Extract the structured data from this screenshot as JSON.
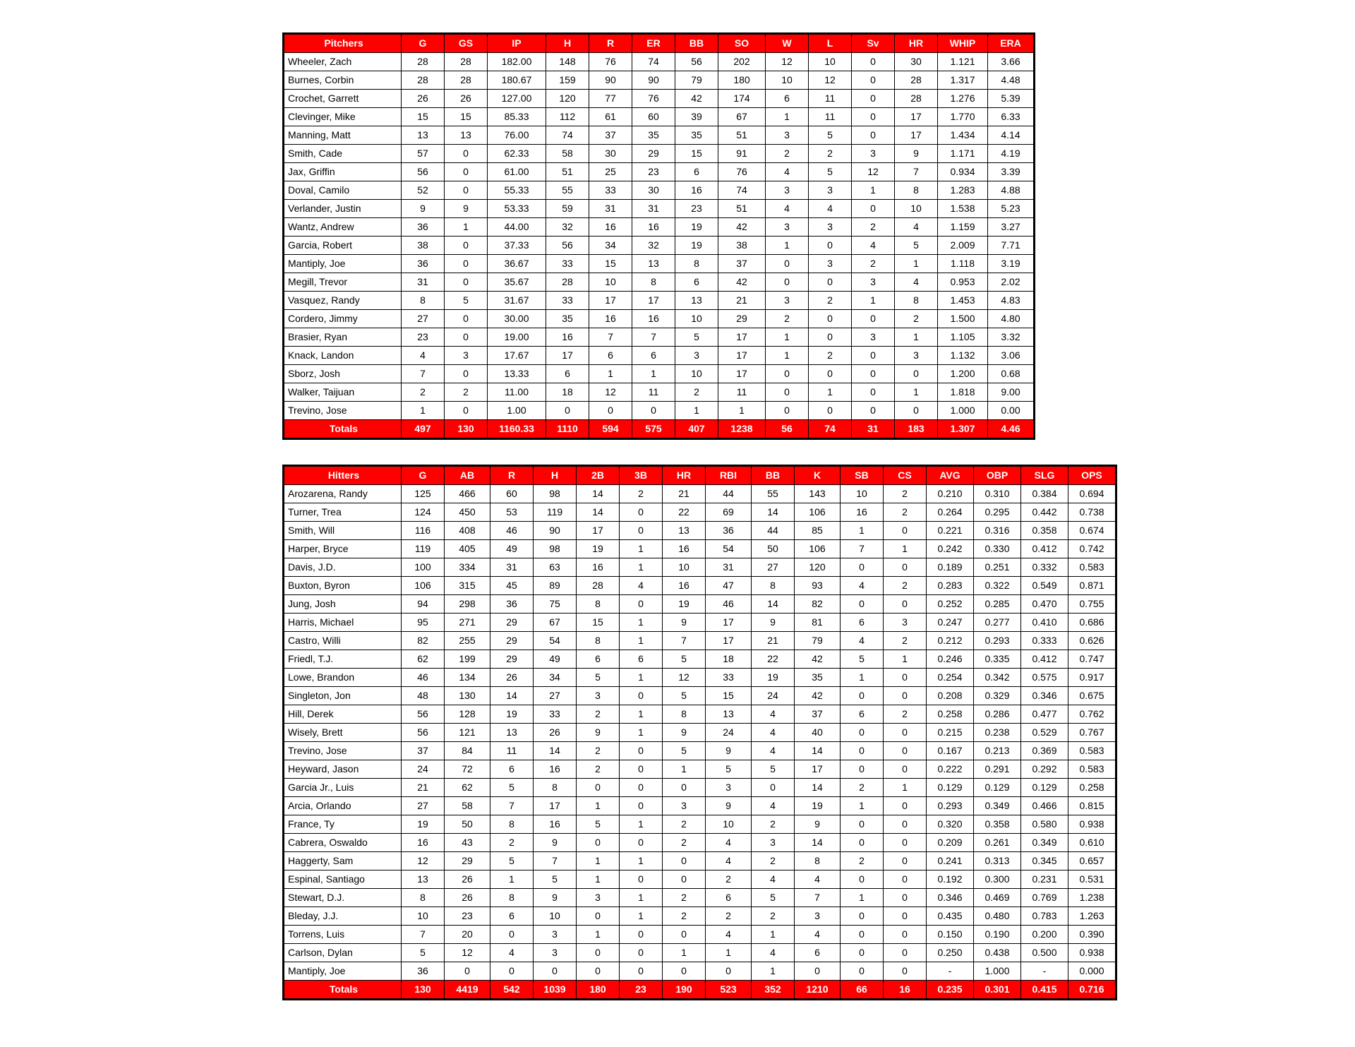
{
  "accent_color": "#FF0000",
  "tables": [
    {
      "id": "pitchers",
      "name_header": "Pitchers",
      "columns": [
        "G",
        "GS",
        "IP",
        "H",
        "R",
        "ER",
        "BB",
        "SO",
        "W",
        "L",
        "Sv",
        "HR",
        "WHIP",
        "ERA"
      ],
      "rows": [
        {
          "name": "Wheeler, Zach",
          "values": [
            "28",
            "28",
            "182.00",
            "148",
            "76",
            "74",
            "56",
            "202",
            "12",
            "10",
            "0",
            "30",
            "1.121",
            "3.66"
          ]
        },
        {
          "name": "Burnes, Corbin",
          "values": [
            "28",
            "28",
            "180.67",
            "159",
            "90",
            "90",
            "79",
            "180",
            "10",
            "12",
            "0",
            "28",
            "1.317",
            "4.48"
          ]
        },
        {
          "name": "Crochet, Garrett",
          "values": [
            "26",
            "26",
            "127.00",
            "120",
            "77",
            "76",
            "42",
            "174",
            "6",
            "11",
            "0",
            "28",
            "1.276",
            "5.39"
          ]
        },
        {
          "name": "Clevinger, Mike",
          "values": [
            "15",
            "15",
            "85.33",
            "112",
            "61",
            "60",
            "39",
            "67",
            "1",
            "11",
            "0",
            "17",
            "1.770",
            "6.33"
          ]
        },
        {
          "name": "Manning, Matt",
          "values": [
            "13",
            "13",
            "76.00",
            "74",
            "37",
            "35",
            "35",
            "51",
            "3",
            "5",
            "0",
            "17",
            "1.434",
            "4.14"
          ]
        },
        {
          "name": "Smith, Cade",
          "values": [
            "57",
            "0",
            "62.33",
            "58",
            "30",
            "29",
            "15",
            "91",
            "2",
            "2",
            "3",
            "9",
            "1.171",
            "4.19"
          ]
        },
        {
          "name": "Jax, Griffin",
          "values": [
            "56",
            "0",
            "61.00",
            "51",
            "25",
            "23",
            "6",
            "76",
            "4",
            "5",
            "12",
            "7",
            "0.934",
            "3.39"
          ]
        },
        {
          "name": "Doval, Camilo",
          "values": [
            "52",
            "0",
            "55.33",
            "55",
            "33",
            "30",
            "16",
            "74",
            "3",
            "3",
            "1",
            "8",
            "1.283",
            "4.88"
          ]
        },
        {
          "name": "Verlander, Justin",
          "values": [
            "9",
            "9",
            "53.33",
            "59",
            "31",
            "31",
            "23",
            "51",
            "4",
            "4",
            "0",
            "10",
            "1.538",
            "5.23"
          ]
        },
        {
          "name": "Wantz, Andrew",
          "values": [
            "36",
            "1",
            "44.00",
            "32",
            "16",
            "16",
            "19",
            "42",
            "3",
            "3",
            "2",
            "4",
            "1.159",
            "3.27"
          ]
        },
        {
          "name": "Garcia, Robert",
          "values": [
            "38",
            "0",
            "37.33",
            "56",
            "34",
            "32",
            "19",
            "38",
            "1",
            "0",
            "4",
            "5",
            "2.009",
            "7.71"
          ]
        },
        {
          "name": "Mantiply, Joe",
          "values": [
            "36",
            "0",
            "36.67",
            "33",
            "15",
            "13",
            "8",
            "37",
            "0",
            "3",
            "2",
            "1",
            "1.118",
            "3.19"
          ]
        },
        {
          "name": "Megill, Trevor",
          "values": [
            "31",
            "0",
            "35.67",
            "28",
            "10",
            "8",
            "6",
            "42",
            "0",
            "0",
            "3",
            "4",
            "0.953",
            "2.02"
          ]
        },
        {
          "name": "Vasquez, Randy",
          "values": [
            "8",
            "5",
            "31.67",
            "33",
            "17",
            "17",
            "13",
            "21",
            "3",
            "2",
            "1",
            "8",
            "1.453",
            "4.83"
          ]
        },
        {
          "name": "Cordero, Jimmy",
          "values": [
            "27",
            "0",
            "30.00",
            "35",
            "16",
            "16",
            "10",
            "29",
            "2",
            "0",
            "0",
            "2",
            "1.500",
            "4.80"
          ]
        },
        {
          "name": "Brasier, Ryan",
          "values": [
            "23",
            "0",
            "19.00",
            "16",
            "7",
            "7",
            "5",
            "17",
            "1",
            "0",
            "3",
            "1",
            "1.105",
            "3.32"
          ]
        },
        {
          "name": "Knack, Landon",
          "values": [
            "4",
            "3",
            "17.67",
            "17",
            "6",
            "6",
            "3",
            "17",
            "1",
            "2",
            "0",
            "3",
            "1.132",
            "3.06"
          ]
        },
        {
          "name": "Sborz, Josh",
          "values": [
            "7",
            "0",
            "13.33",
            "6",
            "1",
            "1",
            "10",
            "17",
            "0",
            "0",
            "0",
            "0",
            "1.200",
            "0.68"
          ]
        },
        {
          "name": "Walker, Taijuan",
          "values": [
            "2",
            "2",
            "11.00",
            "18",
            "12",
            "11",
            "2",
            "11",
            "0",
            "1",
            "0",
            "1",
            "1.818",
            "9.00"
          ]
        },
        {
          "name": "Trevino, Jose",
          "values": [
            "1",
            "0",
            "1.00",
            "0",
            "0",
            "0",
            "1",
            "1",
            "0",
            "0",
            "0",
            "0",
            "1.000",
            "0.00"
          ]
        }
      ],
      "totals_label": "Totals",
      "totals": [
        "497",
        "130",
        "1160.33",
        "1110",
        "594",
        "575",
        "407",
        "1238",
        "56",
        "74",
        "31",
        "183",
        "1.307",
        "4.46"
      ]
    },
    {
      "id": "hitters",
      "name_header": "Hitters",
      "columns": [
        "G",
        "AB",
        "R",
        "H",
        "2B",
        "3B",
        "HR",
        "RBI",
        "BB",
        "K",
        "SB",
        "CS",
        "AVG",
        "OBP",
        "SLG",
        "OPS"
      ],
      "rows": [
        {
          "name": "Arozarena, Randy",
          "values": [
            "125",
            "466",
            "60",
            "98",
            "14",
            "2",
            "21",
            "44",
            "55",
            "143",
            "10",
            "2",
            "0.210",
            "0.310",
            "0.384",
            "0.694"
          ]
        },
        {
          "name": "Turner, Trea",
          "values": [
            "124",
            "450",
            "53",
            "119",
            "14",
            "0",
            "22",
            "69",
            "14",
            "106",
            "16",
            "2",
            "0.264",
            "0.295",
            "0.442",
            "0.738"
          ]
        },
        {
          "name": "Smith, Will",
          "values": [
            "116",
            "408",
            "46",
            "90",
            "17",
            "0",
            "13",
            "36",
            "44",
            "85",
            "1",
            "0",
            "0.221",
            "0.316",
            "0.358",
            "0.674"
          ]
        },
        {
          "name": "Harper, Bryce",
          "values": [
            "119",
            "405",
            "49",
            "98",
            "19",
            "1",
            "16",
            "54",
            "50",
            "106",
            "7",
            "1",
            "0.242",
            "0.330",
            "0.412",
            "0.742"
          ]
        },
        {
          "name": "Davis, J.D.",
          "values": [
            "100",
            "334",
            "31",
            "63",
            "16",
            "1",
            "10",
            "31",
            "27",
            "120",
            "0",
            "0",
            "0.189",
            "0.251",
            "0.332",
            "0.583"
          ]
        },
        {
          "name": "Buxton, Byron",
          "values": [
            "106",
            "315",
            "45",
            "89",
            "28",
            "4",
            "16",
            "47",
            "8",
            "93",
            "4",
            "2",
            "0.283",
            "0.322",
            "0.549",
            "0.871"
          ]
        },
        {
          "name": "Jung, Josh",
          "values": [
            "94",
            "298",
            "36",
            "75",
            "8",
            "0",
            "19",
            "46",
            "14",
            "82",
            "0",
            "0",
            "0.252",
            "0.285",
            "0.470",
            "0.755"
          ]
        },
        {
          "name": "Harris, Michael",
          "values": [
            "95",
            "271",
            "29",
            "67",
            "15",
            "1",
            "9",
            "17",
            "9",
            "81",
            "6",
            "3",
            "0.247",
            "0.277",
            "0.410",
            "0.686"
          ]
        },
        {
          "name": "Castro, Willi",
          "values": [
            "82",
            "255",
            "29",
            "54",
            "8",
            "1",
            "7",
            "17",
            "21",
            "79",
            "4",
            "2",
            "0.212",
            "0.293",
            "0.333",
            "0.626"
          ]
        },
        {
          "name": "Friedl, T.J.",
          "values": [
            "62",
            "199",
            "29",
            "49",
            "6",
            "6",
            "5",
            "18",
            "22",
            "42",
            "5",
            "1",
            "0.246",
            "0.335",
            "0.412",
            "0.747"
          ]
        },
        {
          "name": "Lowe, Brandon",
          "values": [
            "46",
            "134",
            "26",
            "34",
            "5",
            "1",
            "12",
            "33",
            "19",
            "35",
            "1",
            "0",
            "0.254",
            "0.342",
            "0.575",
            "0.917"
          ]
        },
        {
          "name": "Singleton, Jon",
          "values": [
            "48",
            "130",
            "14",
            "27",
            "3",
            "0",
            "5",
            "15",
            "24",
            "42",
            "0",
            "0",
            "0.208",
            "0.329",
            "0.346",
            "0.675"
          ]
        },
        {
          "name": "Hill, Derek",
          "values": [
            "56",
            "128",
            "19",
            "33",
            "2",
            "1",
            "8",
            "13",
            "4",
            "37",
            "6",
            "2",
            "0.258",
            "0.286",
            "0.477",
            "0.762"
          ]
        },
        {
          "name": "Wisely, Brett",
          "values": [
            "56",
            "121",
            "13",
            "26",
            "9",
            "1",
            "9",
            "24",
            "4",
            "40",
            "0",
            "0",
            "0.215",
            "0.238",
            "0.529",
            "0.767"
          ]
        },
        {
          "name": "Trevino, Jose",
          "values": [
            "37",
            "84",
            "11",
            "14",
            "2",
            "0",
            "5",
            "9",
            "4",
            "14",
            "0",
            "0",
            "0.167",
            "0.213",
            "0.369",
            "0.583"
          ]
        },
        {
          "name": "Heyward, Jason",
          "values": [
            "24",
            "72",
            "6",
            "16",
            "2",
            "0",
            "1",
            "5",
            "5",
            "17",
            "0",
            "0",
            "0.222",
            "0.291",
            "0.292",
            "0.583"
          ]
        },
        {
          "name": "Garcia Jr., Luis",
          "values": [
            "21",
            "62",
            "5",
            "8",
            "0",
            "0",
            "0",
            "3",
            "0",
            "14",
            "2",
            "1",
            "0.129",
            "0.129",
            "0.129",
            "0.258"
          ]
        },
        {
          "name": "Arcia, Orlando",
          "values": [
            "27",
            "58",
            "7",
            "17",
            "1",
            "0",
            "3",
            "9",
            "4",
            "19",
            "1",
            "0",
            "0.293",
            "0.349",
            "0.466",
            "0.815"
          ]
        },
        {
          "name": "France, Ty",
          "values": [
            "19",
            "50",
            "8",
            "16",
            "5",
            "1",
            "2",
            "10",
            "2",
            "9",
            "0",
            "0",
            "0.320",
            "0.358",
            "0.580",
            "0.938"
          ]
        },
        {
          "name": "Cabrera, Oswaldo",
          "values": [
            "16",
            "43",
            "2",
            "9",
            "0",
            "0",
            "2",
            "4",
            "3",
            "14",
            "0",
            "0",
            "0.209",
            "0.261",
            "0.349",
            "0.610"
          ]
        },
        {
          "name": "Haggerty, Sam",
          "values": [
            "12",
            "29",
            "5",
            "7",
            "1",
            "1",
            "0",
            "4",
            "2",
            "8",
            "2",
            "0",
            "0.241",
            "0.313",
            "0.345",
            "0.657"
          ]
        },
        {
          "name": "Espinal, Santiago",
          "values": [
            "13",
            "26",
            "1",
            "5",
            "1",
            "0",
            "0",
            "2",
            "4",
            "4",
            "0",
            "0",
            "0.192",
            "0.300",
            "0.231",
            "0.531"
          ]
        },
        {
          "name": "Stewart, D.J.",
          "values": [
            "8",
            "26",
            "8",
            "9",
            "3",
            "1",
            "2",
            "6",
            "5",
            "7",
            "1",
            "0",
            "0.346",
            "0.469",
            "0.769",
            "1.238"
          ]
        },
        {
          "name": "Bleday, J.J.",
          "values": [
            "10",
            "23",
            "6",
            "10",
            "0",
            "1",
            "2",
            "2",
            "2",
            "3",
            "0",
            "0",
            "0.435",
            "0.480",
            "0.783",
            "1.263"
          ]
        },
        {
          "name": "Torrens, Luis",
          "values": [
            "7",
            "20",
            "0",
            "3",
            "1",
            "0",
            "0",
            "4",
            "1",
            "4",
            "0",
            "0",
            "0.150",
            "0.190",
            "0.200",
            "0.390"
          ]
        },
        {
          "name": "Carlson, Dylan",
          "values": [
            "5",
            "12",
            "4",
            "3",
            "0",
            "0",
            "1",
            "1",
            "4",
            "6",
            "0",
            "0",
            "0.250",
            "0.438",
            "0.500",
            "0.938"
          ]
        },
        {
          "name": "Mantiply, Joe",
          "values": [
            "36",
            "0",
            "0",
            "0",
            "0",
            "0",
            "0",
            "0",
            "1",
            "0",
            "0",
            "0",
            "-",
            "1.000",
            "-",
            "0.000"
          ]
        }
      ],
      "totals_label": "Totals",
      "totals": [
        "130",
        "4419",
        "542",
        "1039",
        "180",
        "23",
        "190",
        "523",
        "352",
        "1210",
        "66",
        "16",
        "0.235",
        "0.301",
        "0.415",
        "0.716"
      ]
    }
  ]
}
